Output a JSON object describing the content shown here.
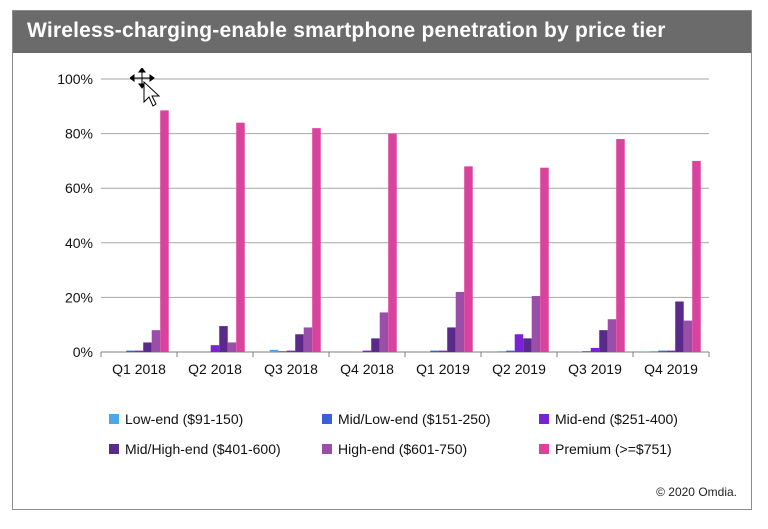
{
  "title": "Wireless-charging-enable smartphone penetration by price tier",
  "copyright": "© 2020 Omdia.",
  "chart_data": {
    "type": "bar",
    "categories": [
      "Q1 2018",
      "Q2 2018",
      "Q3 2018",
      "Q4 2018",
      "Q1 2019",
      "Q2 2019",
      "Q3 2019",
      "Q4 2019"
    ],
    "ylim": [
      0,
      100
    ],
    "yticks": [
      "0%",
      "20%",
      "40%",
      "60%",
      "80%",
      "100%"
    ],
    "grid": true,
    "legend_position": "bottom",
    "series": [
      {
        "name": "Low-end ($91-150)",
        "color": "#4aa8e8",
        "values": [
          0,
          0,
          0.8,
          0,
          0,
          0.3,
          0,
          0.3
        ]
      },
      {
        "name": "Mid/Low-end ($151-250)",
        "color": "#3b5fd9",
        "values": [
          0.5,
          0,
          0.3,
          0,
          0.5,
          0.5,
          0.3,
          0.5
        ]
      },
      {
        "name": "Mid-end ($251-400)",
        "color": "#7b22d6",
        "values": [
          0.5,
          2.5,
          0.5,
          0.5,
          0.5,
          6.5,
          1.5,
          0.5
        ]
      },
      {
        "name": "Mid/High-end ($401-600)",
        "color": "#5a2a8a",
        "values": [
          3.5,
          9.5,
          6.5,
          5,
          9,
          5,
          8,
          18.5
        ]
      },
      {
        "name": "High-end ($601-750)",
        "color": "#9a4ea8",
        "values": [
          8,
          3.5,
          9,
          14.5,
          22,
          20.5,
          12,
          11.5
        ]
      },
      {
        "name": "Premium (>=$751)",
        "color": "#d9439e",
        "values": [
          88.5,
          84,
          82,
          80,
          68,
          67.5,
          78,
          70
        ]
      }
    ]
  }
}
